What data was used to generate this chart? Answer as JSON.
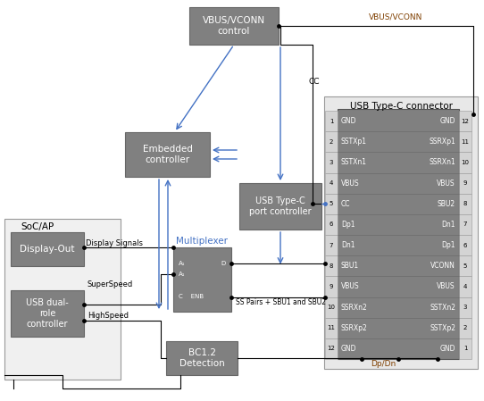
{
  "bg_color": "#ffffff",
  "box_dark": "#808080",
  "box_light": "#e0e0e0",
  "box_soc": "#f0f0f0",
  "blue": "#4472c4",
  "black": "#000000",
  "brown": "#7f3f00",
  "white": "#ffffff",
  "connector_pins_left": [
    "GND",
    "SSTXp1",
    "SSTXn1",
    "VBUS",
    "CC",
    "Dp1",
    "Dn1",
    "SBU1",
    "VBUS",
    "SSRXn2",
    "SSRXp2",
    "GND"
  ],
  "connector_pins_right": [
    "GND",
    "SSRXp1",
    "SSRXn1",
    "VBUS",
    "SBU2",
    "Dn1",
    "Dp1",
    "VCONN",
    "VBUS",
    "SSTXn2",
    "SSTXp2",
    "GND"
  ],
  "nums_left": [
    "1",
    "2",
    "3",
    "4",
    "5",
    "6",
    "7",
    "8",
    "9",
    "10",
    "11",
    "12"
  ],
  "nums_right": [
    "12",
    "11",
    "10",
    "9",
    "8",
    "7",
    "6",
    "5",
    "4",
    "3",
    "2",
    "1"
  ]
}
